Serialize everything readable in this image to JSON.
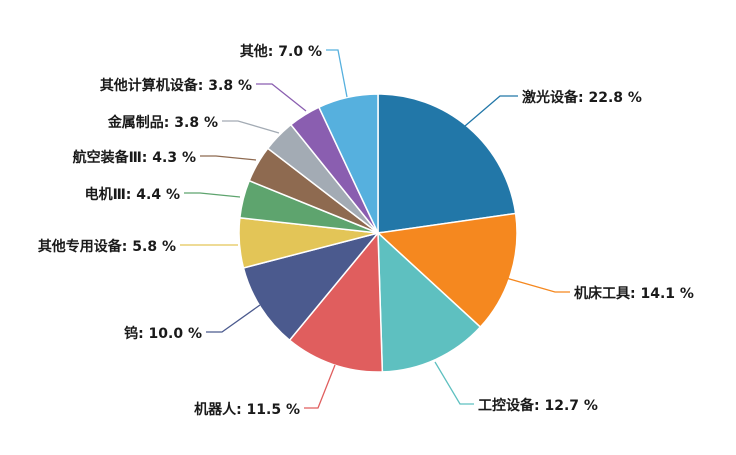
{
  "chart_data": {
    "type": "pie",
    "title": "",
    "unit": "%",
    "series": [
      {
        "name": "",
        "slices": [
          {
            "label": "激光设备",
            "value": 22.8,
            "display": "22.8 %",
            "color": "#2277a8"
          },
          {
            "label": "机床工具",
            "value": 14.1,
            "display": "14.1 %",
            "color": "#f5881f"
          },
          {
            "label": "工控设备",
            "value": 12.7,
            "display": "12.7 %",
            "color": "#5ec0c0"
          },
          {
            "label": "机器人",
            "value": 11.5,
            "display": "11.5 %",
            "color": "#e05e5e"
          },
          {
            "label": "钨",
            "value": 10.0,
            "display": "10.0 %",
            "color": "#4b5a8e"
          },
          {
            "label": "其他专用设备",
            "value": 5.8,
            "display": "5.8 %",
            "color": "#e3c557"
          },
          {
            "label": "电机Ⅲ",
            "value": 4.4,
            "display": "4.4 %",
            "color": "#5ea46e"
          },
          {
            "label": "航空装备Ⅲ",
            "value": 4.3,
            "display": "4.3 %",
            "color": "#8e6a50"
          },
          {
            "label": "金属制品",
            "value": 3.8,
            "display": "3.8 %",
            "color": "#a3abb4"
          },
          {
            "label": "其他计算机设备",
            "value": 3.8,
            "display": "3.8 %",
            "color": "#8a5eb0"
          },
          {
            "label": "其他",
            "value": 7.0,
            "display": "7.0 %",
            "color": "#56b0de"
          }
        ]
      }
    ],
    "legend": "none",
    "start_angle_deg": 0,
    "direction": "clockwise"
  }
}
